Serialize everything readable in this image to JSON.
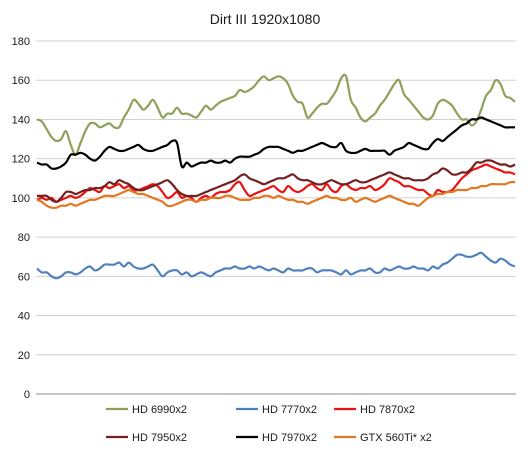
{
  "chart_data": {
    "type": "line",
    "title": "Dirt III 1920x1080",
    "xlabel": "",
    "ylabel": "",
    "ylim": [
      0,
      180
    ],
    "yticks": [
      0,
      20,
      40,
      60,
      80,
      100,
      120,
      140,
      160,
      180
    ],
    "grid": "horizontal",
    "legend_position": "bottom",
    "x_count": 100,
    "series": [
      {
        "name": "HD 6990x2",
        "color": "#8ea05a",
        "values": [
          140,
          139,
          135,
          131,
          129,
          130,
          134,
          127,
          122,
          128,
          134,
          138,
          138,
          136,
          137,
          138,
          136,
          136,
          141,
          145,
          150,
          148,
          145,
          147,
          150,
          146,
          141,
          143,
          143,
          146,
          143,
          143,
          142,
          141,
          144,
          147,
          145,
          147,
          149,
          150,
          151,
          152,
          155,
          154,
          155,
          157,
          160,
          162,
          160,
          161,
          162,
          161,
          158,
          152,
          149,
          148,
          141,
          143,
          146,
          148,
          148,
          151,
          155,
          161,
          162,
          150,
          146,
          141,
          139,
          141,
          143,
          147,
          150,
          154,
          158,
          160,
          153,
          150,
          147,
          144,
          141,
          140,
          142,
          148,
          150,
          149,
          147,
          143,
          140,
          140,
          137,
          139,
          145,
          152,
          155,
          160,
          158,
          152,
          151,
          149
        ]
      },
      {
        "name": "HD 7770x2",
        "color": "#4f81bd",
        "values": [
          64,
          62,
          62,
          60,
          59,
          60,
          62,
          62,
          61,
          62,
          64,
          65,
          63,
          64,
          66,
          66,
          66,
          67,
          65,
          67,
          65,
          64,
          64,
          65,
          66,
          63,
          60,
          62,
          63,
          63,
          61,
          62,
          60,
          61,
          62,
          61,
          60,
          62,
          63,
          64,
          64,
          65,
          64,
          64,
          65,
          64,
          65,
          64,
          63,
          64,
          63,
          62,
          64,
          63,
          63,
          63,
          64,
          64,
          62,
          63,
          63,
          63,
          62,
          61,
          63,
          61,
          62,
          63,
          63,
          64,
          62,
          62,
          64,
          63,
          64,
          65,
          64,
          64,
          65,
          64,
          64,
          63,
          65,
          64,
          66,
          67,
          69,
          71,
          71,
          70,
          70,
          71,
          72,
          70,
          68,
          67,
          69,
          68,
          66,
          65
        ]
      },
      {
        "name": "HD 7870x2",
        "color": "#ee1111",
        "values": [
          99,
          100,
          99,
          100,
          98,
          99,
          100,
          101,
          100,
          101,
          103,
          105,
          104,
          103,
          106,
          105,
          106,
          107,
          105,
          106,
          104,
          104,
          105,
          106,
          107,
          106,
          103,
          100,
          101,
          103,
          100,
          101,
          100,
          98,
          100,
          101,
          100,
          102,
          103,
          103,
          104,
          107,
          108,
          104,
          101,
          102,
          103,
          104,
          105,
          106,
          104,
          103,
          106,
          104,
          103,
          104,
          106,
          107,
          105,
          104,
          107,
          104,
          103,
          106,
          107,
          105,
          104,
          105,
          105,
          106,
          104,
          105,
          107,
          110,
          109,
          108,
          106,
          106,
          105,
          104,
          104,
          102,
          101,
          104,
          103,
          103,
          104,
          107,
          110,
          112,
          114,
          115,
          116,
          117,
          116,
          115,
          114,
          113,
          113,
          112
        ]
      },
      {
        "name": "HD 7950x2",
        "color": "#722020",
        "values": [
          101,
          101,
          101,
          99,
          98,
          100,
          103,
          103,
          102,
          103,
          104,
          104,
          105,
          105,
          106,
          108,
          107,
          109,
          108,
          107,
          105,
          104,
          104,
          105,
          106,
          107,
          108,
          109,
          107,
          104,
          102,
          101,
          101,
          101,
          102,
          103,
          104,
          105,
          106,
          107,
          108,
          109,
          111,
          112,
          110,
          109,
          108,
          107,
          108,
          109,
          110,
          110,
          111,
          112,
          110,
          109,
          109,
          108,
          107,
          107,
          108,
          109,
          108,
          107,
          107,
          108,
          109,
          108,
          108,
          109,
          110,
          111,
          112,
          113,
          112,
          111,
          110,
          110,
          109,
          109,
          109,
          110,
          112,
          113,
          115,
          114,
          112,
          112,
          113,
          113,
          115,
          118,
          118,
          119,
          119,
          118,
          117,
          117,
          116,
          117
        ]
      },
      {
        "name": "HD 7970x2",
        "color": "#000000",
        "values": [
          118,
          117,
          117,
          115,
          115,
          116,
          118,
          122,
          122,
          123,
          122,
          120,
          119,
          121,
          124,
          126,
          125,
          124,
          124,
          125,
          126,
          127,
          125,
          124,
          124,
          125,
          126,
          127,
          129,
          128,
          116,
          118,
          116,
          117,
          118,
          118,
          119,
          118,
          118,
          119,
          118,
          120,
          121,
          121,
          121,
          122,
          123,
          125,
          126,
          126,
          126,
          125,
          124,
          123,
          124,
          124,
          125,
          126,
          127,
          128,
          127,
          126,
          126,
          128,
          124,
          123,
          123,
          124,
          125,
          124,
          124,
          124,
          124,
          122,
          124,
          125,
          126,
          128,
          127,
          126,
          125,
          125,
          128,
          130,
          129,
          131,
          133,
          135,
          137,
          138,
          140,
          140,
          141,
          140,
          139,
          138,
          137,
          136,
          136,
          136
        ]
      },
      {
        "name": "GTX 560Ti* x2",
        "color": "#e57620",
        "values": [
          99,
          98,
          96,
          95,
          95,
          96,
          96,
          97,
          96,
          97,
          98,
          99,
          99,
          100,
          101,
          101,
          101,
          102,
          103,
          104,
          103,
          102,
          102,
          101,
          100,
          99,
          98,
          96,
          96,
          97,
          98,
          99,
          99,
          98,
          99,
          99,
          100,
          100,
          100,
          101,
          101,
          100,
          99,
          99,
          99,
          100,
          100,
          101,
          101,
          100,
          101,
          100,
          99,
          99,
          98,
          98,
          97,
          98,
          99,
          100,
          101,
          100,
          100,
          99,
          99,
          100,
          98,
          99,
          100,
          99,
          98,
          99,
          100,
          101,
          100,
          99,
          98,
          97,
          97,
          96,
          98,
          100,
          101,
          102,
          102,
          103,
          103,
          104,
          104,
          104,
          105,
          105,
          106,
          106,
          107,
          107,
          107,
          107,
          108,
          108
        ]
      }
    ]
  }
}
